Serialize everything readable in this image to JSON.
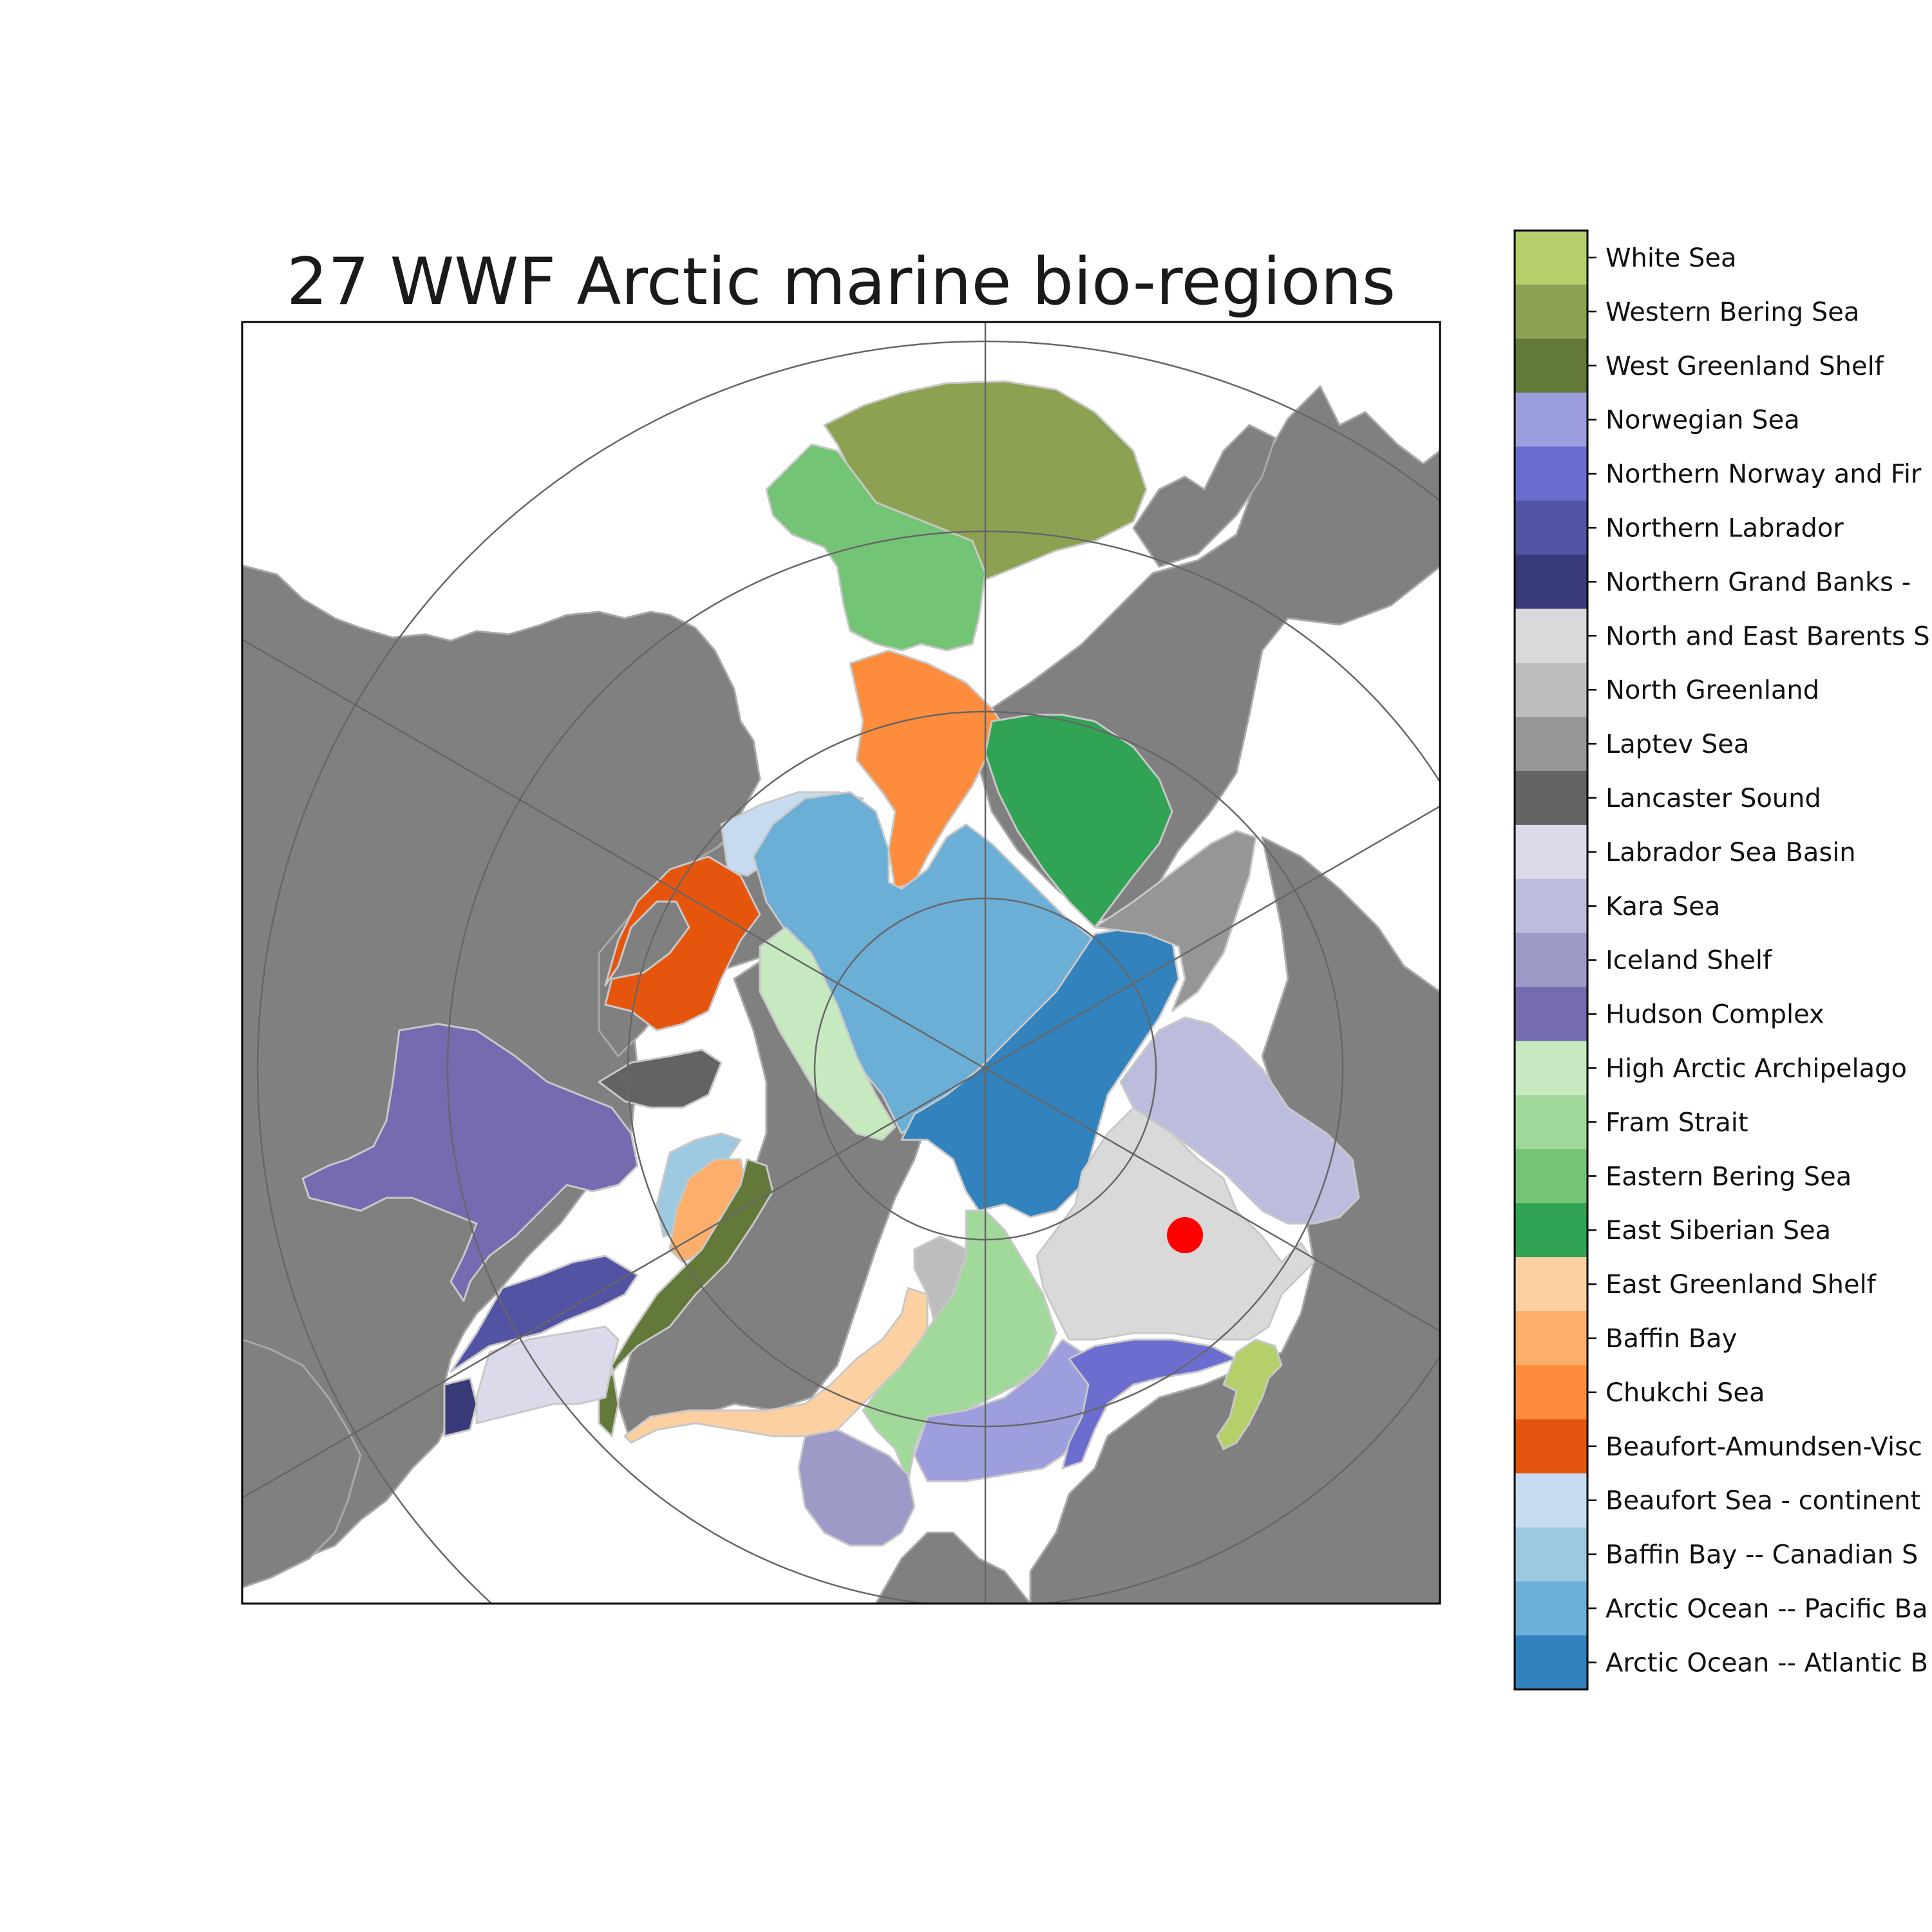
{
  "title": "27 WWF Arctic marine bio-regions",
  "colors": {
    "land": "#808080",
    "ocean": "#ffffff",
    "coast_outline": "#c8c8c8",
    "graticule": "#666666",
    "frame": "#000000",
    "marker": "#ff0000"
  },
  "marker": {
    "shape": "filled-circle",
    "color": "#ff0000"
  },
  "legend": [
    {
      "label": "White Sea",
      "color": "#b5cf6b"
    },
    {
      "label": "Western Bering Sea",
      "color": "#8ca252"
    },
    {
      "label": "West Greenland Shelf",
      "color": "#637939"
    },
    {
      "label": "Norwegian Sea",
      "color": "#9c9ede"
    },
    {
      "label": "Northern Norway and Fir",
      "color": "#6b6ecf"
    },
    {
      "label": "Northern Labrador",
      "color": "#5254a3"
    },
    {
      "label": "Northern Grand Banks -",
      "color": "#393b79"
    },
    {
      "label": "North and East Barents S",
      "color": "#d9d9d9"
    },
    {
      "label": "North Greenland",
      "color": "#bdbdbd"
    },
    {
      "label": "Laptev Sea",
      "color": "#969696"
    },
    {
      "label": "Lancaster Sound",
      "color": "#636363"
    },
    {
      "label": "Labrador Sea Basin",
      "color": "#dadaeb"
    },
    {
      "label": "Kara Sea",
      "color": "#bcbddc"
    },
    {
      "label": "Iceland Shelf",
      "color": "#9e9ac8"
    },
    {
      "label": "Hudson Complex",
      "color": "#756bb1"
    },
    {
      "label": "High Arctic Archipelago",
      "color": "#c7e9c0"
    },
    {
      "label": "Fram Strait",
      "color": "#a1d99b"
    },
    {
      "label": "Eastern Bering Sea",
      "color": "#74c476"
    },
    {
      "label": "East Siberian Sea",
      "color": "#31a354"
    },
    {
      "label": "East Greenland Shelf",
      "color": "#fdd0a2"
    },
    {
      "label": "Baffin Bay",
      "color": "#fdae6b"
    },
    {
      "label": "Chukchi Sea",
      "color": "#fd8d3c"
    },
    {
      "label": "Beaufort-Amundsen-Visc",
      "color": "#e6550d"
    },
    {
      "label": "Beaufort Sea - continent",
      "color": "#c6dbef"
    },
    {
      "label": "Baffin Bay -- Canadian S",
      "color": "#9ecae1"
    },
    {
      "label": "Arctic Ocean -- Pacific Ba",
      "color": "#6baed6"
    },
    {
      "label": "Arctic Ocean -- Atlantic B",
      "color": "#3182bd"
    }
  ]
}
